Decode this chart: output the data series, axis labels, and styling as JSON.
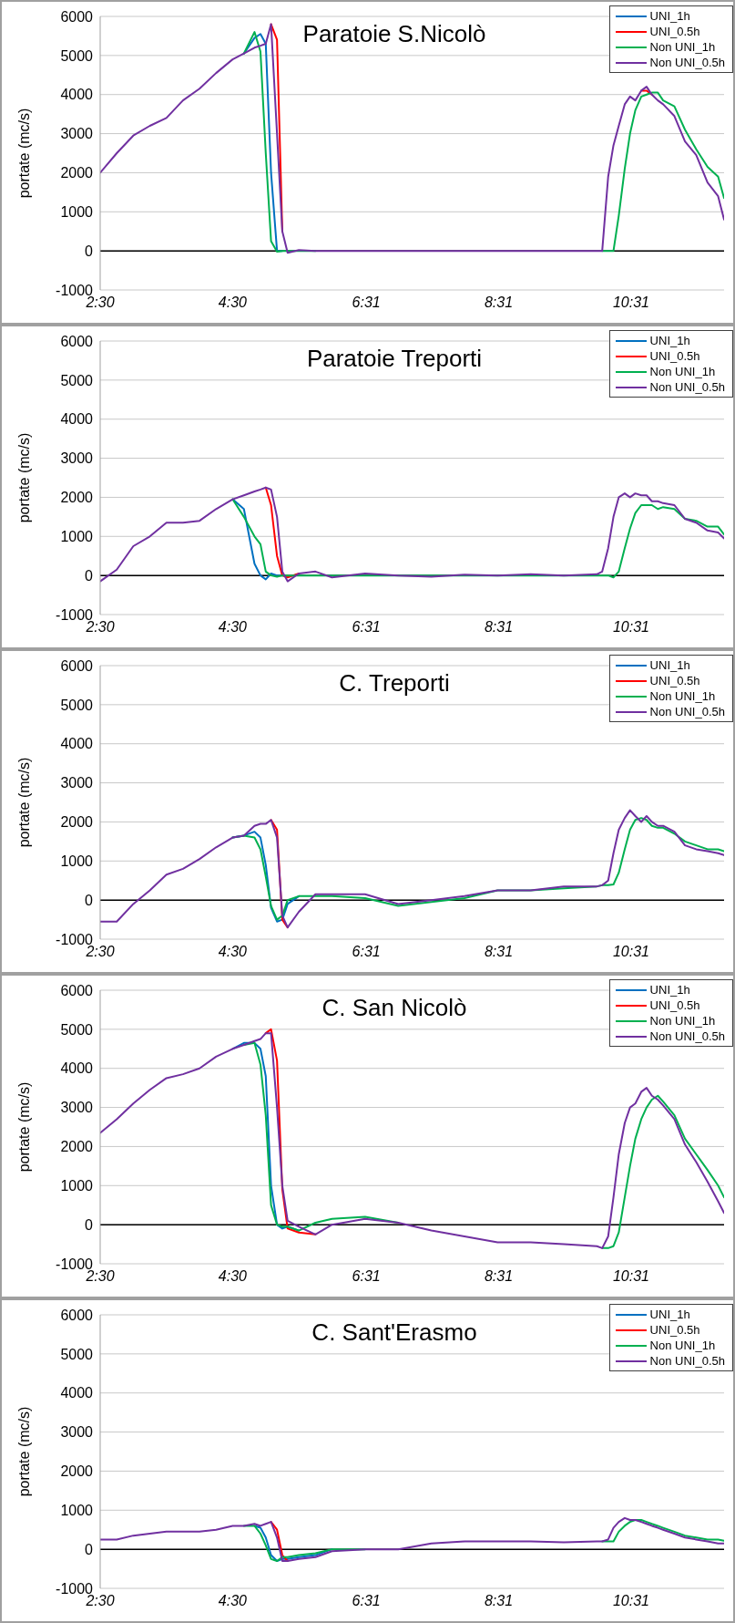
{
  "chart_data": [
    {
      "type": "line",
      "title": "Paratoie S.Nicolò",
      "ylabel": "portate (mc/s)",
      "xlim": [
        2.5,
        11.92
      ],
      "xticks": [
        {
          "value": 2.5,
          "label": "2:30"
        },
        {
          "value": 4.5,
          "label": "4:30"
        },
        {
          "value": 6.517,
          "label": "6:31"
        },
        {
          "value": 8.517,
          "label": "8:31"
        },
        {
          "value": 10.517,
          "label": "10:31"
        }
      ],
      "ylim": [
        -1000,
        6000
      ],
      "yticks": [
        -1000,
        0,
        1000,
        2000,
        3000,
        4000,
        5000,
        6000
      ],
      "grid": "y",
      "legend": "top right",
      "ref_lines": [
        {
          "axis": "y",
          "value": 0,
          "color": "#000000"
        }
      ],
      "x": [
        2.5,
        2.75,
        3.0,
        3.25,
        3.5,
        3.75,
        4.0,
        4.25,
        4.5,
        4.67,
        4.83,
        4.92,
        5.0,
        5.08,
        5.17,
        5.25,
        5.33,
        5.5,
        5.75,
        6.0,
        6.5,
        7.0,
        7.5,
        8.0,
        8.5,
        9.0,
        9.5,
        10.0,
        10.08,
        10.17,
        10.25,
        10.33,
        10.42,
        10.5,
        10.58,
        10.67,
        10.75,
        10.83,
        10.92,
        11.0,
        11.17,
        11.33,
        11.5,
        11.67,
        11.83,
        11.92
      ],
      "series": [
        {
          "name": "UNI_1h",
          "color": "#0070c0",
          "values": [
            null,
            null,
            null,
            null,
            null,
            null,
            null,
            null,
            null,
            5050,
            5450,
            5550,
            5300,
            2000,
            0,
            0,
            null,
            null,
            null,
            null,
            null,
            null,
            null,
            null,
            null,
            null,
            null,
            null,
            null,
            null,
            null,
            null,
            null,
            null,
            null,
            null,
            null,
            null,
            null,
            null,
            null,
            null,
            null,
            null,
            null,
            null
          ]
        },
        {
          "name": "UNI_0.5h",
          "color": "#ff0000",
          "values": [
            null,
            null,
            null,
            null,
            null,
            null,
            null,
            null,
            null,
            null,
            null,
            null,
            null,
            5800,
            5400,
            500,
            null,
            null,
            null,
            null,
            null,
            null,
            null,
            null,
            null,
            null,
            null,
            null,
            null,
            null,
            null,
            null,
            null,
            null,
            null,
            4100,
            4100,
            4000,
            null,
            null,
            null,
            null,
            null,
            null,
            null,
            null
          ]
        },
        {
          "name": "Non UNI_1h",
          "color": "#00b050",
          "values": [
            null,
            null,
            null,
            null,
            null,
            null,
            null,
            null,
            null,
            5050,
            5600,
            5100,
            2500,
            250,
            -20,
            0,
            0,
            0,
            0,
            null,
            null,
            null,
            null,
            null,
            null,
            null,
            null,
            null,
            0,
            0,
            0,
            900,
            2100,
            3000,
            3600,
            3950,
            4000,
            4050,
            4050,
            3850,
            3700,
            3100,
            2600,
            2150,
            1900,
            1350
          ]
        },
        {
          "name": "Non UNI_0.5h",
          "color": "#7030a0",
          "values": [
            2000,
            2500,
            2950,
            3200,
            3400,
            3850,
            4150,
            4550,
            4900,
            5050,
            5200,
            5250,
            5300,
            5800,
            3000,
            500,
            -50,
            20,
            0,
            0,
            0,
            0,
            0,
            0,
            0,
            0,
            0,
            0,
            0,
            1900,
            2700,
            3200,
            3750,
            3950,
            3850,
            4100,
            4200,
            4000,
            3850,
            3750,
            3450,
            2800,
            2450,
            1750,
            1400,
            800
          ]
        }
      ]
    },
    {
      "type": "line",
      "title": "Paratoie Treporti",
      "ylabel": "portate (mc/s)",
      "xlim": [
        2.5,
        11.92
      ],
      "xticks": [
        {
          "value": 2.5,
          "label": "2:30"
        },
        {
          "value": 4.5,
          "label": "4:30"
        },
        {
          "value": 6.517,
          "label": "6:31"
        },
        {
          "value": 8.517,
          "label": "8:31"
        },
        {
          "value": 10.517,
          "label": "10:31"
        }
      ],
      "ylim": [
        -1000,
        6000
      ],
      "yticks": [
        -1000,
        0,
        1000,
        2000,
        3000,
        4000,
        5000,
        6000
      ],
      "grid": "y",
      "legend": "top right",
      "ref_lines": [
        {
          "axis": "y",
          "value": 0,
          "color": "#000000"
        }
      ],
      "x": [
        2.5,
        2.75,
        3.0,
        3.25,
        3.5,
        3.75,
        4.0,
        4.25,
        4.5,
        4.67,
        4.83,
        4.92,
        5.0,
        5.08,
        5.17,
        5.25,
        5.33,
        5.5,
        5.75,
        6.0,
        6.5,
        7.0,
        7.5,
        8.0,
        8.5,
        9.0,
        9.5,
        10.0,
        10.08,
        10.17,
        10.25,
        10.33,
        10.42,
        10.5,
        10.58,
        10.67,
        10.75,
        10.83,
        10.92,
        11.0,
        11.17,
        11.33,
        11.5,
        11.67,
        11.83,
        11.92
      ],
      "series": [
        {
          "name": "UNI_1h",
          "color": "#0070c0",
          "values": [
            null,
            null,
            null,
            null,
            null,
            null,
            null,
            null,
            1950,
            1700,
            300,
            0,
            -100,
            50,
            0,
            0,
            null,
            null,
            null,
            null,
            null,
            null,
            null,
            null,
            null,
            null,
            null,
            null,
            null,
            null,
            null,
            null,
            null,
            null,
            null,
            null,
            null,
            null,
            null,
            null,
            null,
            null,
            null,
            null,
            null,
            null
          ]
        },
        {
          "name": "UNI_0.5h",
          "color": "#ff0000",
          "values": [
            null,
            null,
            null,
            null,
            null,
            null,
            null,
            null,
            null,
            null,
            null,
            null,
            2250,
            1800,
            500,
            0,
            -50,
            50,
            null,
            null,
            null,
            null,
            null,
            null,
            null,
            null,
            null,
            null,
            null,
            null,
            null,
            null,
            null,
            null,
            null,
            null,
            null,
            null,
            null,
            null,
            null,
            null,
            null,
            null,
            null,
            null
          ]
        },
        {
          "name": "Non UNI_1h",
          "color": "#00b050",
          "values": [
            null,
            null,
            null,
            null,
            null,
            null,
            null,
            null,
            1950,
            1500,
            1000,
            800,
            100,
            0,
            -30,
            0,
            0,
            0,
            0,
            0,
            0,
            0,
            0,
            0,
            0,
            0,
            0,
            0,
            0,
            0,
            -50,
            100,
            700,
            1200,
            1600,
            1800,
            1800,
            1800,
            1700,
            1750,
            1700,
            1450,
            1400,
            1250,
            1250,
            1050
          ]
        },
        {
          "name": "Non UNI_0.5h",
          "color": "#7030a0",
          "values": [
            -150,
            150,
            750,
            1000,
            1350,
            1350,
            1400,
            1700,
            1950,
            2050,
            2150,
            2200,
            2250,
            2200,
            1500,
            100,
            -150,
            50,
            100,
            -50,
            50,
            0,
            -30,
            20,
            0,
            30,
            0,
            30,
            100,
            700,
            1500,
            2000,
            2100,
            2000,
            2100,
            2050,
            2050,
            1900,
            1900,
            1850,
            1800,
            1450,
            1350,
            1150,
            1100,
            950
          ]
        }
      ]
    },
    {
      "type": "line",
      "title": "C. Treporti",
      "ylabel": "portate (mc/s)",
      "xlim": [
        2.5,
        11.92
      ],
      "xticks": [
        {
          "value": 2.5,
          "label": "2:30"
        },
        {
          "value": 4.5,
          "label": "4:30"
        },
        {
          "value": 6.517,
          "label": "6:31"
        },
        {
          "value": 8.517,
          "label": "8:31"
        },
        {
          "value": 10.517,
          "label": "10:31"
        }
      ],
      "ylim": [
        -1000,
        6000
      ],
      "yticks": [
        -1000,
        0,
        1000,
        2000,
        3000,
        4000,
        5000,
        6000
      ],
      "grid": "y",
      "legend": "top right",
      "ref_lines": [
        {
          "axis": "y",
          "value": 0,
          "color": "#000000"
        }
      ],
      "x": [
        2.5,
        2.75,
        3.0,
        3.25,
        3.5,
        3.75,
        4.0,
        4.25,
        4.5,
        4.67,
        4.83,
        4.92,
        5.0,
        5.08,
        5.17,
        5.25,
        5.33,
        5.5,
        5.75,
        6.0,
        6.5,
        7.0,
        7.5,
        8.0,
        8.5,
        9.0,
        9.5,
        10.0,
        10.08,
        10.17,
        10.25,
        10.33,
        10.42,
        10.5,
        10.58,
        10.67,
        10.75,
        10.83,
        10.92,
        11.0,
        11.17,
        11.33,
        11.5,
        11.67,
        11.83,
        11.92
      ],
      "series": [
        {
          "name": "UNI_1h",
          "color": "#0070c0",
          "values": [
            null,
            null,
            null,
            null,
            null,
            null,
            null,
            null,
            1600,
            1650,
            1750,
            1600,
            900,
            -200,
            -550,
            -500,
            -100,
            100,
            null,
            null,
            null,
            null,
            null,
            null,
            null,
            null,
            null,
            null,
            null,
            null,
            null,
            null,
            null,
            null,
            null,
            null,
            null,
            null,
            null,
            null,
            null,
            null,
            null,
            null,
            null,
            null
          ]
        },
        {
          "name": "UNI_0.5h",
          "color": "#ff0000",
          "values": [
            null,
            null,
            null,
            null,
            null,
            null,
            null,
            null,
            null,
            null,
            null,
            null,
            null,
            2050,
            1800,
            -500,
            -700,
            null,
            null,
            null,
            null,
            null,
            null,
            null,
            null,
            null,
            null,
            null,
            null,
            null,
            null,
            null,
            null,
            null,
            null,
            null,
            null,
            null,
            null,
            null,
            null,
            null,
            null,
            null,
            null,
            null
          ]
        },
        {
          "name": "Non UNI_1h",
          "color": "#00b050",
          "values": [
            null,
            null,
            null,
            null,
            null,
            null,
            null,
            null,
            1600,
            1650,
            1600,
            1300,
            600,
            -150,
            -500,
            -400,
            0,
            100,
            100,
            100,
            50,
            -150,
            -50,
            50,
            250,
            250,
            300,
            350,
            380,
            380,
            400,
            700,
            1300,
            1800,
            2050,
            2100,
            2050,
            1900,
            1850,
            1850,
            1700,
            1500,
            1400,
            1300,
            1300,
            1250
          ]
        },
        {
          "name": "Non UNI_0.5h",
          "color": "#7030a0",
          "values": [
            -550,
            -550,
            -100,
            250,
            650,
            800,
            1050,
            1350,
            1600,
            1650,
            1900,
            1950,
            1950,
            2050,
            1600,
            -400,
            -700,
            -300,
            150,
            150,
            150,
            -100,
            0,
            100,
            250,
            250,
            350,
            350,
            380,
            500,
            1200,
            1800,
            2100,
            2300,
            2150,
            2000,
            2150,
            2000,
            1900,
            1900,
            1750,
            1400,
            1300,
            1250,
            1200,
            1150
          ]
        }
      ]
    },
    {
      "type": "line",
      "title": "C. San Nicolò",
      "ylabel": "portate (mc/s)",
      "xlim": [
        2.5,
        11.92
      ],
      "xticks": [
        {
          "value": 2.5,
          "label": "2:30"
        },
        {
          "value": 4.5,
          "label": "4:30"
        },
        {
          "value": 6.517,
          "label": "6:31"
        },
        {
          "value": 8.517,
          "label": "8:31"
        },
        {
          "value": 10.517,
          "label": "10:31"
        }
      ],
      "ylim": [
        -1000,
        6000
      ],
      "yticks": [
        -1000,
        0,
        1000,
        2000,
        3000,
        4000,
        5000,
        6000
      ],
      "grid": "y",
      "legend": "top right",
      "ref_lines": [
        {
          "axis": "y",
          "value": 0,
          "color": "#000000"
        }
      ],
      "x": [
        2.5,
        2.75,
        3.0,
        3.25,
        3.5,
        3.75,
        4.0,
        4.25,
        4.5,
        4.67,
        4.83,
        4.92,
        5.0,
        5.08,
        5.17,
        5.25,
        5.33,
        5.5,
        5.75,
        6.0,
        6.5,
        7.0,
        7.5,
        8.0,
        8.5,
        9.0,
        9.5,
        10.0,
        10.08,
        10.17,
        10.25,
        10.33,
        10.42,
        10.5,
        10.58,
        10.67,
        10.75,
        10.83,
        10.92,
        11.0,
        11.17,
        11.33,
        11.5,
        11.67,
        11.83,
        11.92
      ],
      "series": [
        {
          "name": "UNI_1h",
          "color": "#0070c0",
          "values": [
            null,
            null,
            null,
            null,
            null,
            null,
            null,
            null,
            4500,
            4650,
            4650,
            4500,
            3800,
            1000,
            0,
            -100,
            -50,
            -150,
            null,
            null,
            null,
            null,
            null,
            null,
            null,
            null,
            null,
            null,
            null,
            null,
            null,
            null,
            null,
            null,
            null,
            null,
            null,
            null,
            null,
            null,
            null,
            null,
            null,
            null,
            null,
            null
          ]
        },
        {
          "name": "UNI_0.5h",
          "color": "#ff0000",
          "values": [
            null,
            null,
            null,
            null,
            null,
            null,
            null,
            null,
            null,
            null,
            null,
            null,
            4900,
            5000,
            4200,
            900,
            -100,
            -200,
            -250,
            null,
            null,
            null,
            null,
            null,
            null,
            null,
            null,
            null,
            null,
            null,
            null,
            null,
            null,
            null,
            null,
            null,
            null,
            null,
            null,
            null,
            null,
            null,
            null,
            null,
            null,
            null
          ]
        },
        {
          "name": "Non UNI_1h",
          "color": "#00b050",
          "values": [
            null,
            null,
            null,
            null,
            null,
            null,
            null,
            null,
            null,
            4600,
            4650,
            4100,
            2800,
            500,
            0,
            -50,
            -50,
            -150,
            50,
            150,
            200,
            50,
            null,
            null,
            null,
            null,
            null,
            null,
            -600,
            -600,
            -550,
            -200,
            700,
            1500,
            2200,
            2700,
            3000,
            3200,
            3300,
            3150,
            2800,
            2200,
            1800,
            1400,
            1000,
            700
          ]
        },
        {
          "name": "Non UNI_0.5h",
          "color": "#7030a0",
          "values": [
            2350,
            2700,
            3100,
            3450,
            3750,
            3850,
            4000,
            4300,
            4500,
            4600,
            4700,
            4750,
            4900,
            4900,
            3000,
            1000,
            100,
            -50,
            -250,
            0,
            150,
            50,
            -150,
            -300,
            -450,
            -450,
            -500,
            -550,
            -600,
            -300,
            700,
            1800,
            2600,
            3000,
            3100,
            3400,
            3500,
            3300,
            3200,
            3050,
            2700,
            2050,
            1600,
            1100,
            600,
            300
          ]
        }
      ]
    },
    {
      "type": "line",
      "title": "C. Sant'Erasmo",
      "ylabel": "portate (mc/s)",
      "xlim": [
        2.5,
        11.92
      ],
      "xticks": [
        {
          "value": 2.5,
          "label": "2:30"
        },
        {
          "value": 4.5,
          "label": "4:30"
        },
        {
          "value": 6.517,
          "label": "6:31"
        },
        {
          "value": 8.517,
          "label": "8:31"
        },
        {
          "value": 10.517,
          "label": "10:31"
        }
      ],
      "ylim": [
        -1000,
        6000
      ],
      "yticks": [
        -1000,
        0,
        1000,
        2000,
        3000,
        4000,
        5000,
        6000
      ],
      "grid": "y",
      "legend": "top right",
      "ref_lines": [
        {
          "axis": "y",
          "value": 0,
          "color": "#000000"
        }
      ],
      "x": [
        2.5,
        2.75,
        3.0,
        3.25,
        3.5,
        3.75,
        4.0,
        4.25,
        4.5,
        4.67,
        4.83,
        4.92,
        5.0,
        5.08,
        5.17,
        5.25,
        5.33,
        5.5,
        5.75,
        6.0,
        6.5,
        7.0,
        7.5,
        8.0,
        8.5,
        9.0,
        9.5,
        10.0,
        10.08,
        10.17,
        10.25,
        10.33,
        10.42,
        10.5,
        10.58,
        10.67,
        10.75,
        10.83,
        10.92,
        11.0,
        11.17,
        11.33,
        11.5,
        11.67,
        11.83,
        11.92
      ],
      "series": [
        {
          "name": "UNI_1h",
          "color": "#0070c0",
          "values": [
            null,
            null,
            null,
            null,
            null,
            null,
            null,
            null,
            null,
            null,
            600,
            550,
            300,
            -150,
            -300,
            -250,
            -250,
            -200,
            -150,
            0,
            null,
            null,
            null,
            null,
            null,
            null,
            null,
            null,
            null,
            null,
            null,
            null,
            null,
            null,
            null,
            null,
            null,
            null,
            null,
            null,
            null,
            null,
            null,
            null,
            null,
            null
          ]
        },
        {
          "name": "UNI_0.5h",
          "color": "#ff0000",
          "values": [
            null,
            null,
            null,
            null,
            null,
            null,
            null,
            null,
            null,
            null,
            null,
            null,
            null,
            700,
            500,
            -150,
            -300,
            null,
            null,
            null,
            null,
            null,
            null,
            null,
            null,
            null,
            null,
            null,
            null,
            null,
            null,
            null,
            null,
            null,
            null,
            null,
            null,
            null,
            null,
            null,
            null,
            null,
            null,
            null,
            null,
            null
          ]
        },
        {
          "name": "Non UNI_1h",
          "color": "#00b050",
          "values": [
            null,
            null,
            null,
            null,
            null,
            null,
            null,
            null,
            null,
            600,
            600,
            400,
            100,
            -250,
            -300,
            -200,
            -200,
            -150,
            -100,
            0,
            0,
            null,
            null,
            null,
            null,
            null,
            null,
            null,
            200,
            200,
            200,
            450,
            600,
            700,
            750,
            750,
            700,
            650,
            600,
            550,
            450,
            350,
            300,
            250,
            250,
            220
          ]
        },
        {
          "name": "Non UNI_0.5h",
          "color": "#7030a0",
          "values": [
            250,
            250,
            350,
            400,
            450,
            450,
            450,
            500,
            600,
            600,
            650,
            600,
            650,
            700,
            300,
            -300,
            -300,
            -250,
            -200,
            -50,
            0,
            0,
            150,
            200,
            200,
            200,
            180,
            200,
            200,
            250,
            550,
            700,
            800,
            750,
            750,
            700,
            650,
            600,
            550,
            500,
            400,
            300,
            250,
            200,
            150,
            150
          ]
        }
      ]
    }
  ]
}
